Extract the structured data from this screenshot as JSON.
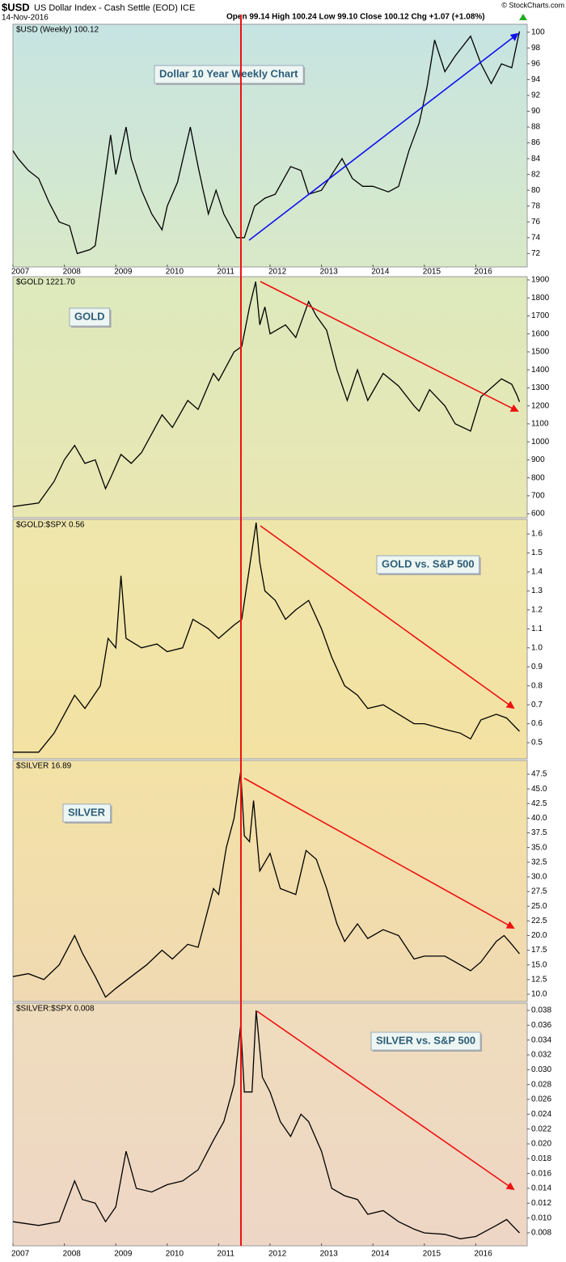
{
  "header": {
    "symbol": "$USD",
    "name": "US Dollar Index - Cash Settle (EOD) ICE",
    "date": "14-Nov-2016",
    "quote": "Open 99.14  High 100.24  Low 99.10  Close 100.12  Chg +1.07 (+1.08%)",
    "source": "© StockCharts.com"
  },
  "chart_data": [
    {
      "type": "line",
      "title": "$USD (Weekly) 100.12",
      "annotation": "Dollar 10 Year Weekly Chart",
      "color": "#000000",
      "x": [
        2007.0,
        2007.1,
        2007.3,
        2007.5,
        2007.7,
        2007.9,
        2008.1,
        2008.25,
        2008.5,
        2008.6,
        2008.75,
        2008.9,
        2009.0,
        2009.2,
        2009.3,
        2009.5,
        2009.7,
        2009.9,
        2010.0,
        2010.2,
        2010.45,
        2010.6,
        2010.8,
        2010.95,
        2011.1,
        2011.35,
        2011.5,
        2011.7,
        2011.9,
        2012.1,
        2012.4,
        2012.6,
        2012.75,
        2013.0,
        2013.25,
        2013.4,
        2013.6,
        2013.8,
        2014.0,
        2014.3,
        2014.5,
        2014.7,
        2014.9,
        2015.05,
        2015.2,
        2015.4,
        2015.6,
        2015.9,
        2016.1,
        2016.3,
        2016.5,
        2016.7,
        2016.85
      ],
      "values": [
        85,
        84,
        82.5,
        81.5,
        78.5,
        76,
        75.5,
        72,
        72.5,
        73,
        80,
        87,
        82,
        88,
        84,
        80,
        77,
        75,
        78,
        81,
        88,
        83,
        77,
        80,
        77,
        74,
        74,
        78,
        79,
        79.5,
        83,
        82.5,
        79.5,
        80,
        82.5,
        84,
        81.5,
        80.5,
        80.5,
        79.8,
        80.5,
        85,
        88.5,
        93,
        99,
        95,
        97,
        99.5,
        96,
        93.5,
        96,
        95.5,
        100.1
      ],
      "xlim": [
        2007,
        2017
      ],
      "xticks": [
        2007,
        2008,
        2009,
        2010,
        2011,
        2012,
        2013,
        2014,
        2015,
        2016
      ],
      "ylim": [
        70.3,
        101
      ],
      "yticks": [
        72,
        74,
        76,
        78,
        80,
        82,
        84,
        86,
        88,
        90,
        92,
        94,
        96,
        98,
        100
      ]
    },
    {
      "type": "line",
      "title": "$GOLD 1221.70",
      "annotation": "GOLD",
      "color": "#000000",
      "x": [
        2007.0,
        2007.5,
        2007.8,
        2008.0,
        2008.2,
        2008.4,
        2008.6,
        2008.8,
        2008.9,
        2009.1,
        2009.3,
        2009.5,
        2009.9,
        2010.1,
        2010.4,
        2010.6,
        2010.9,
        2011.0,
        2011.3,
        2011.45,
        2011.6,
        2011.72,
        2011.8,
        2011.9,
        2012.0,
        2012.3,
        2012.5,
        2012.75,
        2012.9,
        2013.1,
        2013.3,
        2013.5,
        2013.7,
        2013.9,
        2014.2,
        2014.5,
        2014.8,
        2014.9,
        2015.1,
        2015.4,
        2015.6,
        2015.9,
        2016.1,
        2016.5,
        2016.7,
        2016.8,
        2016.85
      ],
      "values": [
        640,
        660,
        780,
        900,
        980,
        880,
        900,
        740,
        800,
        930,
        880,
        940,
        1150,
        1080,
        1230,
        1180,
        1380,
        1340,
        1500,
        1530,
        1750,
        1890,
        1650,
        1750,
        1600,
        1650,
        1580,
        1780,
        1700,
        1620,
        1400,
        1230,
        1400,
        1230,
        1380,
        1310,
        1200,
        1170,
        1290,
        1200,
        1100,
        1060,
        1250,
        1350,
        1320,
        1260,
        1221.7
      ],
      "xlim": [
        2007,
        2017
      ],
      "ylim": [
        578,
        1918
      ],
      "yticks": [
        600,
        700,
        800,
        900,
        1000,
        1100,
        1200,
        1300,
        1400,
        1500,
        1600,
        1700,
        1800,
        1900
      ]
    },
    {
      "type": "line",
      "title": "$GOLD:$SPX 0.56",
      "annotation": "GOLD vs. S&P 500",
      "color": "#000000",
      "x": [
        2007.0,
        2007.5,
        2007.8,
        2008.0,
        2008.2,
        2008.4,
        2008.7,
        2008.85,
        2009.0,
        2009.1,
        2009.2,
        2009.5,
        2009.8,
        2010.0,
        2010.3,
        2010.5,
        2010.8,
        2011.0,
        2011.3,
        2011.45,
        2011.73,
        2011.8,
        2011.9,
        2012.1,
        2012.3,
        2012.5,
        2012.75,
        2013.0,
        2013.2,
        2013.45,
        2013.7,
        2013.9,
        2014.2,
        2014.5,
        2014.8,
        2015.0,
        2015.4,
        2015.7,
        2015.9,
        2016.1,
        2016.4,
        2016.6,
        2016.85
      ],
      "values": [
        0.45,
        0.45,
        0.55,
        0.65,
        0.75,
        0.68,
        0.8,
        1.05,
        1.0,
        1.38,
        1.05,
        1.0,
        1.02,
        0.98,
        1.0,
        1.15,
        1.1,
        1.05,
        1.12,
        1.15,
        1.66,
        1.45,
        1.3,
        1.25,
        1.15,
        1.2,
        1.25,
        1.1,
        0.95,
        0.8,
        0.75,
        0.68,
        0.7,
        0.65,
        0.6,
        0.6,
        0.57,
        0.55,
        0.52,
        0.62,
        0.65,
        0.63,
        0.56
      ],
      "xlim": [
        2007,
        2017
      ],
      "ylim": [
        0.415,
        1.677
      ],
      "yticks": [
        0.5,
        0.6,
        0.7,
        0.8,
        0.9,
        {
          "value": 1,
          "label": "1.0"
        },
        1.1,
        1.2,
        1.3,
        1.4,
        1.5,
        1.6
      ]
    },
    {
      "type": "line",
      "title": "$SILVER 16.89",
      "annotation": "SILVER",
      "color": "#000000",
      "x": [
        2007.0,
        2007.3,
        2007.6,
        2007.9,
        2008.2,
        2008.35,
        2008.6,
        2008.8,
        2009.0,
        2009.3,
        2009.6,
        2009.9,
        2010.1,
        2010.4,
        2010.6,
        2010.9,
        2011.0,
        2011.15,
        2011.3,
        2011.43,
        2011.5,
        2011.6,
        2011.68,
        2011.8,
        2012.0,
        2012.2,
        2012.5,
        2012.7,
        2012.9,
        2013.1,
        2013.3,
        2013.45,
        2013.7,
        2013.9,
        2014.2,
        2014.5,
        2014.8,
        2015.0,
        2015.4,
        2015.7,
        2015.9,
        2016.1,
        2016.4,
        2016.55,
        2016.7,
        2016.85
      ],
      "values": [
        13,
        13.5,
        12.5,
        15,
        20,
        17,
        13,
        9.5,
        11,
        13,
        15,
        17.5,
        16,
        18.5,
        18,
        28,
        27,
        35,
        40,
        48,
        37,
        36,
        43,
        31,
        34,
        28,
        27,
        34.5,
        33,
        28,
        22,
        19,
        22,
        19.5,
        21,
        20,
        16,
        16.5,
        16.5,
        15,
        14,
        15.5,
        19,
        20,
        18.5,
        16.89
      ],
      "xlim": [
        2007,
        2017
      ],
      "ylim": [
        8.76,
        49.84
      ],
      "yticks": [
        {
          "value": 10,
          "label": "10.0"
        },
        12.5,
        {
          "value": 15,
          "label": "15.0"
        },
        17.5,
        {
          "value": 20,
          "label": "20.0"
        },
        22.5,
        {
          "value": 25,
          "label": "25.0"
        },
        27.5,
        {
          "value": 30,
          "label": "30.0"
        },
        32.5,
        {
          "value": 35,
          "label": "35.0"
        },
        37.5,
        {
          "value": 40,
          "label": "40.0"
        },
        42.5,
        {
          "value": 45,
          "label": "45.0"
        },
        47.5
      ]
    },
    {
      "type": "line",
      "title": "$SILVER:$SPX 0.008",
      "annotation": "SILVER vs. S&P 500",
      "color": "#000000",
      "x": [
        2007.0,
        2007.5,
        2007.9,
        2008.2,
        2008.35,
        2008.6,
        2008.8,
        2009.0,
        2009.2,
        2009.4,
        2009.7,
        2010.0,
        2010.3,
        2010.6,
        2010.9,
        2011.1,
        2011.3,
        2011.43,
        2011.5,
        2011.65,
        2011.73,
        2011.85,
        2012.0,
        2012.2,
        2012.4,
        2012.6,
        2012.75,
        2013.0,
        2013.2,
        2013.45,
        2013.7,
        2013.9,
        2014.2,
        2014.5,
        2014.8,
        2015.0,
        2015.4,
        2015.7,
        2016.0,
        2016.4,
        2016.6,
        2016.85
      ],
      "values": [
        0.0095,
        0.009,
        0.0095,
        0.015,
        0.0125,
        0.012,
        0.0095,
        0.0115,
        0.019,
        0.014,
        0.0135,
        0.0145,
        0.015,
        0.0165,
        0.0205,
        0.023,
        0.028,
        0.036,
        0.027,
        0.027,
        0.038,
        0.029,
        0.027,
        0.023,
        0.021,
        0.024,
        0.023,
        0.019,
        0.014,
        0.013,
        0.0125,
        0.0105,
        0.011,
        0.0095,
        0.0085,
        0.008,
        0.0078,
        0.0072,
        0.0075,
        0.009,
        0.0098,
        0.008
      ],
      "xlim": [
        2007,
        2017
      ],
      "xticks": [
        2007,
        2008,
        2009,
        2010,
        2011,
        2012,
        2013,
        2014,
        2015,
        2016
      ],
      "ylim": [
        0.00625,
        0.03898
      ],
      "yticks": [
        0.008,
        {
          "value": 0.01,
          "label": "0.010"
        },
        0.012,
        0.014,
        0.016,
        0.018,
        {
          "value": 0.02,
          "label": "0.020"
        },
        0.022,
        0.024,
        0.026,
        0.028,
        {
          "value": 0.03,
          "label": "0.030"
        },
        0.032,
        0.034,
        0.036,
        0.038
      ]
    }
  ]
}
